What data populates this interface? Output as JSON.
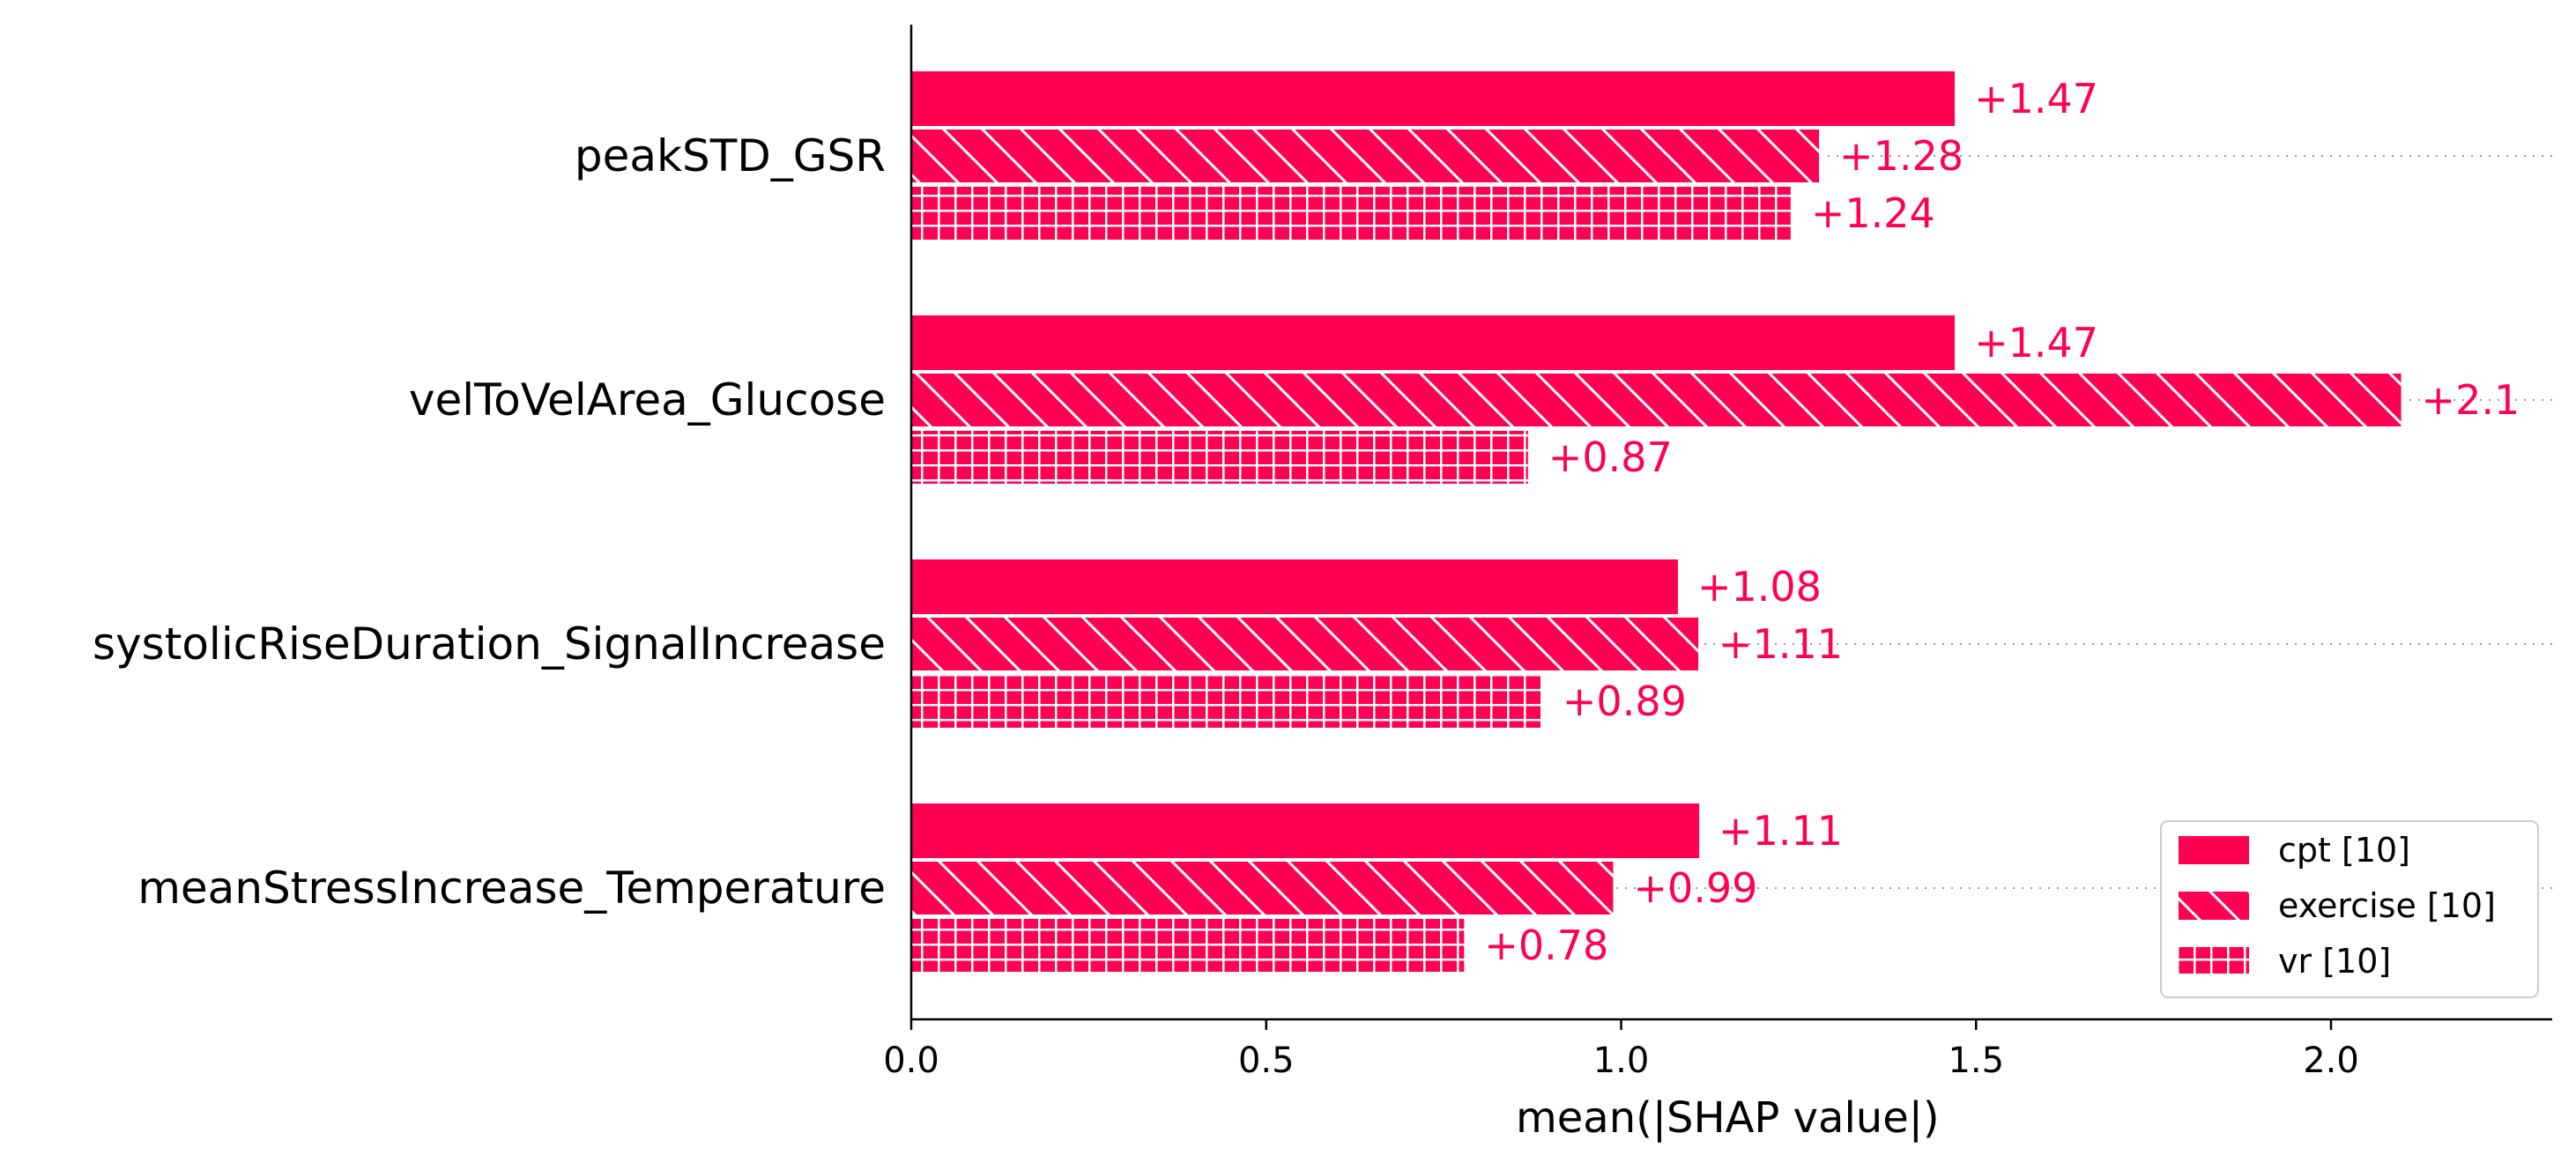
{
  "chart_data": {
    "type": "bar",
    "orientation": "horizontal",
    "title": "",
    "xlabel": "mean(|SHAP value|)",
    "ylabel": "",
    "xlim": [
      0,
      2.3
    ],
    "xticks": [
      0.0,
      0.5,
      1.0,
      1.5,
      2.0
    ],
    "xtick_labels": [
      "0.0",
      "0.5",
      "1.0",
      "1.5",
      "2.0"
    ],
    "grid": false,
    "legend_position": "bottom-right",
    "color": "#ff0052",
    "categories": [
      "peakSTD_GSR",
      "velToVelArea_Glucose",
      "systolicRiseDuration_SignalIncrease",
      "meanStressIncrease_Temperature"
    ],
    "series": [
      {
        "name": "cpt [10]",
        "pattern": "solid",
        "values": [
          1.47,
          1.47,
          1.08,
          1.11
        ],
        "labels": [
          "+1.47",
          "+1.47",
          "+1.08",
          "+1.11"
        ]
      },
      {
        "name": "exercise [10]",
        "pattern": "diagonal",
        "values": [
          1.28,
          2.1,
          1.11,
          0.99
        ],
        "labels": [
          "+1.28",
          "+2.1",
          "+1.11",
          "+0.99"
        ]
      },
      {
        "name": "vr [10]",
        "pattern": "grid",
        "values": [
          1.24,
          0.87,
          0.89,
          0.78
        ],
        "labels": [
          "+1.24",
          "+0.87",
          "+0.89",
          "+0.78"
        ]
      }
    ]
  }
}
